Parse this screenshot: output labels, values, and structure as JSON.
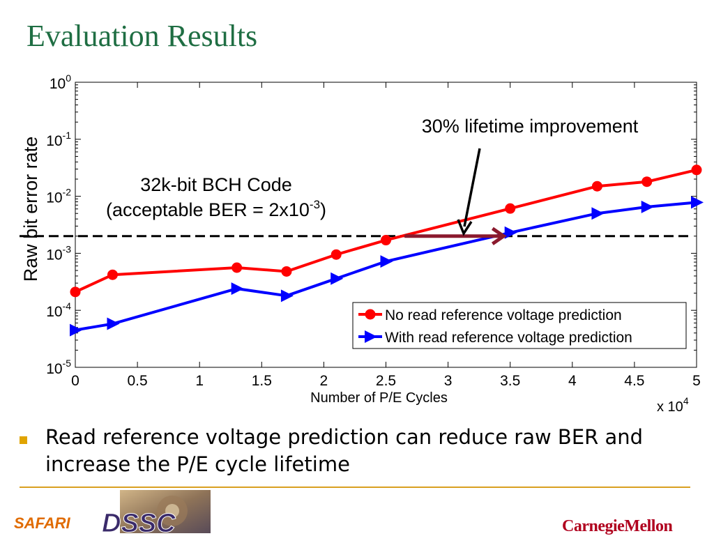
{
  "slide": {
    "title": "Evaluation Results",
    "bullet": "Read reference voltage prediction can reduce raw BER and increase the P/E cycle lifetime",
    "footer_left": "SAFARI",
    "footer_right": "CarnegieMellon",
    "accent_color": "#1f6e43",
    "bullet_color": "#e0a400",
    "rule_color": "#d9a020"
  },
  "chart_data": {
    "type": "line",
    "xlabel": "Number of P/E Cycles",
    "ylabel": "Raw bit error rate",
    "x_multiplier_label": "x 10",
    "x_multiplier_exponent": "4",
    "xlim": [
      0,
      5
    ],
    "ylim": [
      1e-05,
      1
    ],
    "yscale": "log",
    "xticks": [
      "0",
      "0.5",
      "1",
      "1.5",
      "2",
      "2.5",
      "3",
      "3.5",
      "4",
      "4.5",
      "5"
    ],
    "yticks": [
      {
        "base": "10",
        "exp": "0",
        "value": 1
      },
      {
        "base": "10",
        "exp": "-1",
        "value": 0.1
      },
      {
        "base": "10",
        "exp": "-2",
        "value": 0.01
      },
      {
        "base": "10",
        "exp": "-3",
        "value": 0.001
      },
      {
        "base": "10",
        "exp": "-4",
        "value": 0.0001
      },
      {
        "base": "10",
        "exp": "-5",
        "value": 1e-05
      }
    ],
    "legend_position": "bottom-right",
    "series": [
      {
        "name": "No read reference voltage prediction",
        "color": "#ff0000",
        "marker": "circle",
        "points": [
          [
            0,
            0.00021
          ],
          [
            0.3,
            0.00042
          ],
          [
            1.3,
            0.00056
          ],
          [
            1.7,
            0.00048
          ],
          [
            2.1,
            0.00095
          ],
          [
            2.5,
            0.0017
          ],
          [
            3.5,
            0.0061
          ],
          [
            4.2,
            0.015
          ],
          [
            4.6,
            0.018
          ],
          [
            5,
            0.029
          ]
        ]
      },
      {
        "name": "With read reference voltage prediction",
        "color": "#0000ff",
        "marker": "triangle-right",
        "points": [
          [
            0,
            4.5e-05
          ],
          [
            0.3,
            5.8e-05
          ],
          [
            1.3,
            0.00024
          ],
          [
            1.7,
            0.00018
          ],
          [
            2.1,
            0.00036
          ],
          [
            2.5,
            0.00072
          ],
          [
            3.5,
            0.0023
          ],
          [
            4.2,
            0.005
          ],
          [
            4.6,
            0.0065
          ],
          [
            5,
            0.0078
          ]
        ]
      }
    ],
    "threshold": {
      "value": 0.002,
      "style": "dashed",
      "color": "#000000"
    },
    "annotations": {
      "bch_line1": "32k-bit BCH Code",
      "bch_line2_prefix": "(acceptable BER = 2x10",
      "bch_line2_exp": "-3",
      "bch_line2_suffix": ")",
      "improvement": "30% lifetime improvement",
      "improvement_from_x": 2.65,
      "improvement_to_x": 3.47,
      "improvement_arrow_color": "#8b1a2e"
    }
  }
}
